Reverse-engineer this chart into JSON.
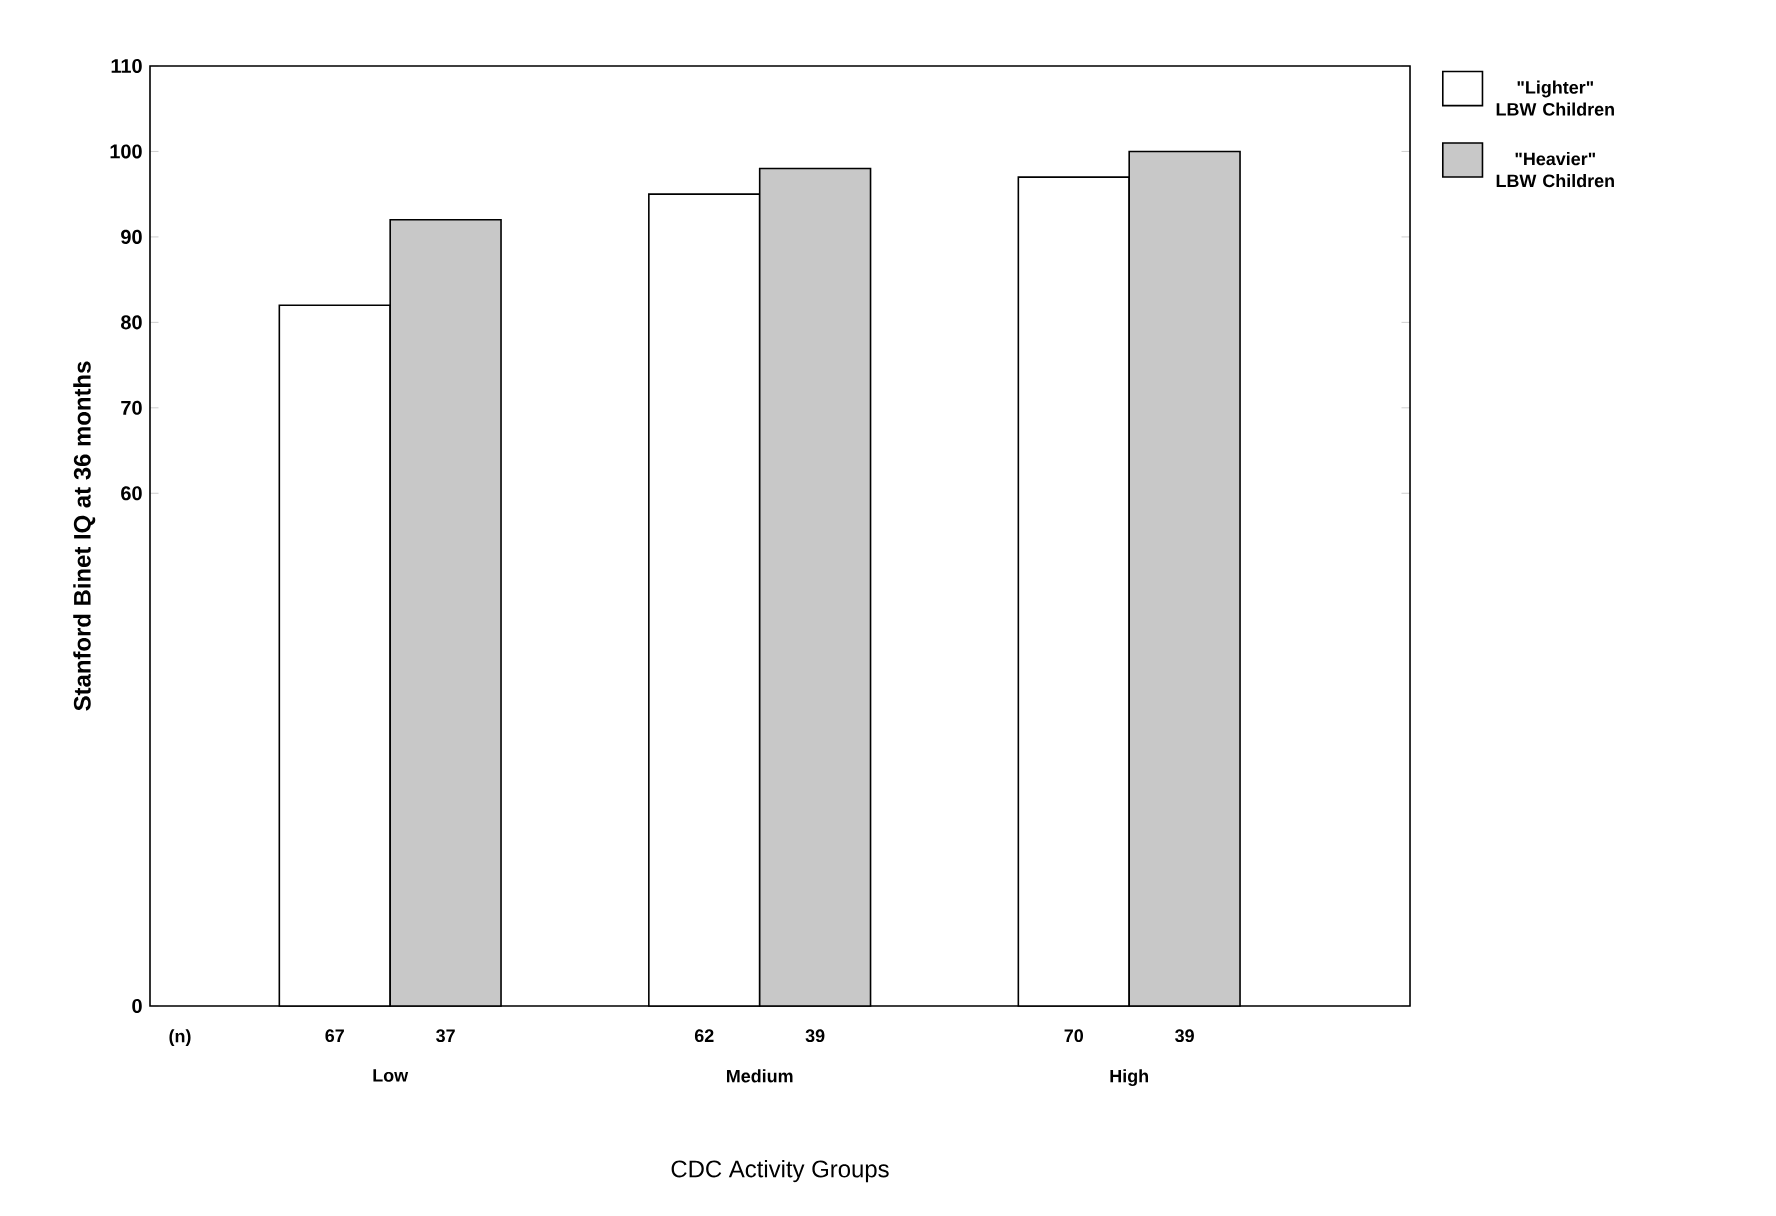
{
  "chart_data": {
    "type": "bar",
    "xlabel": "CDC Activity Groups",
    "ylabel": "Stanford Binet IQ at 36 months",
    "categories": [
      "Low",
      "Medium",
      "High"
    ],
    "series": [
      {
        "name": "\"Lighter\" LBW Children",
        "color": "#ffffff",
        "values": [
          82,
          95,
          97
        ]
      },
      {
        "name": "\"Heavier\" LBW Children",
        "color": "#c8c8c8",
        "values": [
          92,
          98,
          100
        ]
      }
    ],
    "ylim": [
      0,
      110
    ],
    "yticks": [
      0,
      60,
      70,
      80,
      90,
      100,
      110
    ],
    "legend": "right",
    "annotations": [
      "(n)",
      "67",
      "37",
      "62",
      "39",
      "70",
      "39"
    ]
  }
}
